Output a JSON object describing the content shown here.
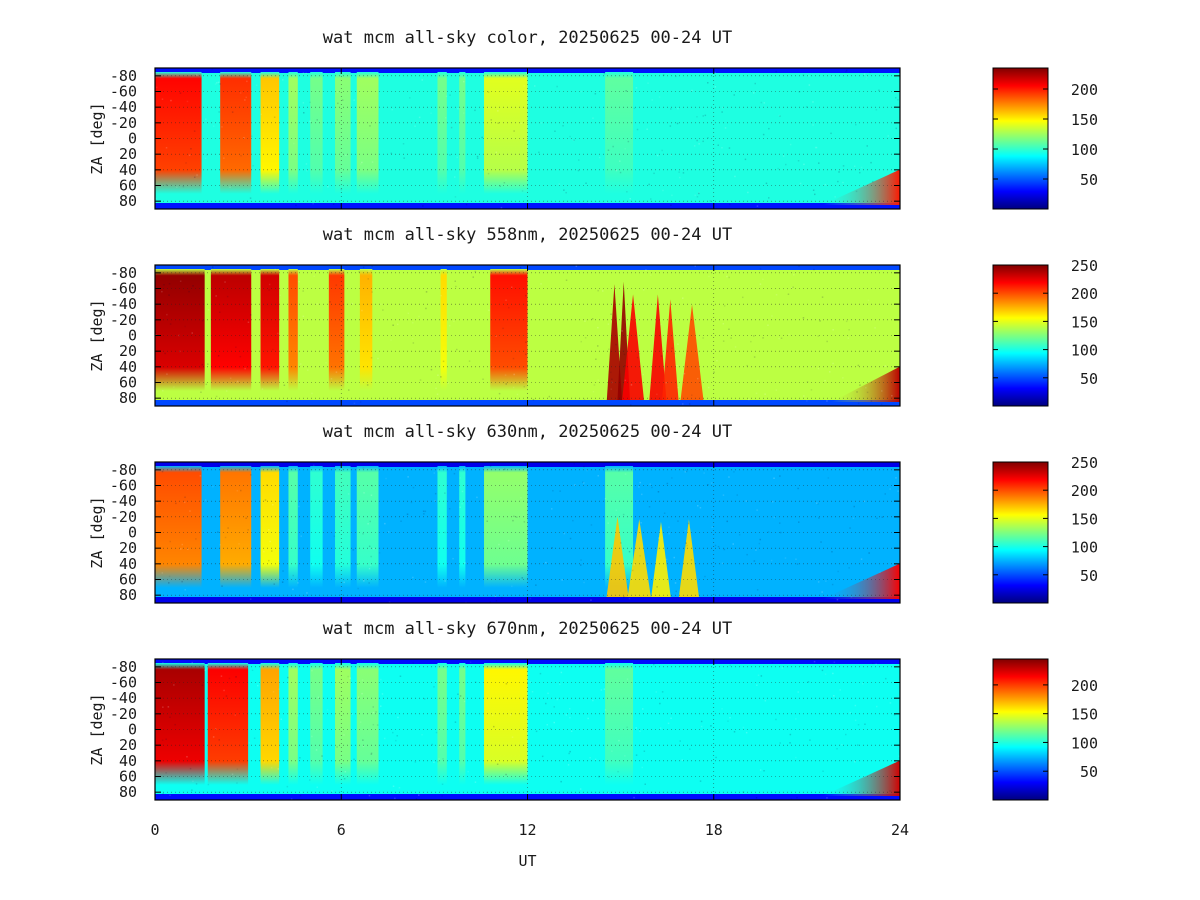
{
  "chart_data": [
    {
      "type": "heatmap",
      "title": "wat mcm all-sky color, 20250625 00-24 UT",
      "ylabel": "ZA [deg]",
      "ylim": [
        -90,
        90
      ],
      "yticks": [
        "-80",
        "-60",
        "-40",
        "-20",
        "0",
        "20",
        "40",
        "60",
        "80"
      ],
      "xlim": [
        0,
        24
      ],
      "colorbar": {
        "ticks": [
          "50",
          "100",
          "150",
          "200"
        ],
        "range": [
          0,
          235
        ]
      },
      "background": 95,
      "segments": [
        {
          "x": [
            0.0,
            1.5
          ],
          "value": 205
        },
        {
          "x": [
            2.1,
            3.1
          ],
          "value": 195
        },
        {
          "x": [
            3.4,
            4.0
          ],
          "value": 160
        },
        {
          "x": [
            4.3,
            4.6
          ],
          "value": 125
        },
        {
          "x": [
            5.0,
            5.4
          ],
          "value": 115
        },
        {
          "x": [
            5.8,
            6.3
          ],
          "value": 120
        },
        {
          "x": [
            6.5,
            7.2
          ],
          "value": 125
        },
        {
          "x": [
            9.1,
            9.4
          ],
          "value": 115
        },
        {
          "x": [
            9.8,
            10.0
          ],
          "value": 115
        },
        {
          "x": [
            10.6,
            12.0
          ],
          "value": 140
        },
        {
          "x": [
            14.5,
            15.4
          ],
          "value": 110
        }
      ],
      "corner_glow": {
        "x": [
          21.5,
          24.0
        ],
        "value": 200
      }
    },
    {
      "type": "heatmap",
      "title": "wat mcm all-sky 558nm, 20250625 00-24 UT",
      "ylabel": "ZA [deg]",
      "ylim": [
        -90,
        90
      ],
      "yticks": [
        "-80",
        "-60",
        "-40",
        "-20",
        "0",
        "20",
        "40",
        "60",
        "80"
      ],
      "xlim": [
        0,
        24
      ],
      "colorbar": {
        "ticks": [
          "50",
          "100",
          "150",
          "200",
          "250"
        ],
        "range": [
          0,
          250
        ]
      },
      "background": 140,
      "segments": [
        {
          "x": [
            0.0,
            1.6
          ],
          "value": 245
        },
        {
          "x": [
            1.8,
            3.1
          ],
          "value": 235
        },
        {
          "x": [
            3.4,
            4.0
          ],
          "value": 230
        },
        {
          "x": [
            4.3,
            4.6
          ],
          "value": 200
        },
        {
          "x": [
            5.6,
            6.1
          ],
          "value": 205
        },
        {
          "x": [
            6.6,
            7.0
          ],
          "value": 175
        },
        {
          "x": [
            9.2,
            9.4
          ],
          "value": 165
        },
        {
          "x": [
            10.8,
            12.0
          ],
          "value": 215
        }
      ],
      "spikes": [
        {
          "x": 14.8,
          "value": 240
        },
        {
          "x": 15.1,
          "value": 245
        },
        {
          "x": 15.4,
          "value": 220
        },
        {
          "x": 16.2,
          "value": 220
        },
        {
          "x": 16.6,
          "value": 210
        },
        {
          "x": 17.3,
          "value": 200
        }
      ],
      "corner_glow": {
        "x": [
          21.8,
          24.0
        ],
        "value": 235
      }
    },
    {
      "type": "heatmap",
      "title": "wat mcm all-sky 630nm, 20250625 00-24 UT",
      "ylabel": "ZA [deg]",
      "ylim": [
        -90,
        90
      ],
      "yticks": [
        "-80",
        "-60",
        "-40",
        "-20",
        "0",
        "20",
        "40",
        "60",
        "80"
      ],
      "xlim": [
        0,
        24
      ],
      "colorbar": {
        "ticks": [
          "50",
          "100",
          "150",
          "200",
          "250"
        ],
        "range": [
          0,
          250
        ]
      },
      "background": 75,
      "segments": [
        {
          "x": [
            0.0,
            1.5
          ],
          "value": 200
        },
        {
          "x": [
            2.1,
            3.1
          ],
          "value": 190
        },
        {
          "x": [
            3.4,
            4.0
          ],
          "value": 165
        },
        {
          "x": [
            4.3,
            4.6
          ],
          "value": 115
        },
        {
          "x": [
            5.0,
            5.4
          ],
          "value": 105
        },
        {
          "x": [
            5.8,
            6.3
          ],
          "value": 110
        },
        {
          "x": [
            6.5,
            7.2
          ],
          "value": 115
        },
        {
          "x": [
            9.1,
            9.4
          ],
          "value": 105
        },
        {
          "x": [
            9.8,
            10.0
          ],
          "value": 105
        },
        {
          "x": [
            10.6,
            12.0
          ],
          "value": 130
        },
        {
          "x": [
            14.5,
            15.4
          ],
          "value": 115
        }
      ],
      "spikes": [
        {
          "x": 14.9,
          "value": 170
        },
        {
          "x": 15.6,
          "value": 165
        },
        {
          "x": 16.3,
          "value": 160
        },
        {
          "x": 17.2,
          "value": 165
        }
      ],
      "corner_glow": {
        "x": [
          21.5,
          24.0
        ],
        "value": 220
      }
    },
    {
      "type": "heatmap",
      "title": "wat mcm all-sky 670nm, 20250625 00-24 UT",
      "ylabel": "ZA [deg]",
      "ylim": [
        -90,
        90
      ],
      "yticks": [
        "-80",
        "-60",
        "-40",
        "-20",
        "0",
        "20",
        "40",
        "60",
        "80"
      ],
      "xlim": [
        0,
        24
      ],
      "xticks": [
        "0",
        "6",
        "12",
        "18",
        "24"
      ],
      "xlabel": "UT",
      "colorbar": {
        "ticks": [
          "50",
          "100",
          "150",
          "200"
        ],
        "range": [
          0,
          245
        ]
      },
      "background": 95,
      "segments": [
        {
          "x": [
            0.0,
            1.6
          ],
          "value": 235
        },
        {
          "x": [
            1.7,
            3.0
          ],
          "value": 215
        },
        {
          "x": [
            3.4,
            4.0
          ],
          "value": 175
        },
        {
          "x": [
            4.3,
            4.6
          ],
          "value": 130
        },
        {
          "x": [
            5.0,
            5.4
          ],
          "value": 120
        },
        {
          "x": [
            5.8,
            6.3
          ],
          "value": 130
        },
        {
          "x": [
            6.5,
            7.2
          ],
          "value": 125
        },
        {
          "x": [
            9.1,
            9.4
          ],
          "value": 120
        },
        {
          "x": [
            9.8,
            10.0
          ],
          "value": 120
        },
        {
          "x": [
            10.6,
            12.0
          ],
          "value": 155
        },
        {
          "x": [
            14.5,
            15.4
          ],
          "value": 115
        }
      ],
      "corner_glow": {
        "x": [
          21.5,
          24.0
        ],
        "value": 225
      }
    }
  ],
  "colors": {
    "jet": [
      "#00007f",
      "#0000ff",
      "#007fff",
      "#00ffff",
      "#7fff7f",
      "#ffff00",
      "#ff7f00",
      "#ff0000",
      "#7f0000"
    ],
    "grid": "#222222",
    "frame": "#000000"
  }
}
